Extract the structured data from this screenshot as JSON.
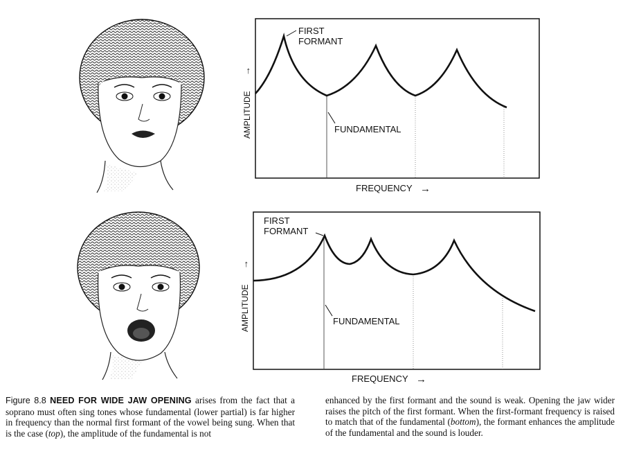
{
  "figure_number": "Figure 8.8",
  "caption_title": "NEED FOR WIDE JAW OPENING",
  "caption_left": "arises from the fact that a soprano must often sing tones whose fundamental (lower partial) is far higher in frequency than the normal first formant of the vowel being sung. When that is the case (",
  "caption_left_em": "top",
  "caption_left_end": "), the amplitude of the fundamental is not",
  "caption_right_a": "enhanced by the first formant and the sound is weak. Opening the jaw wider raises the pitch of the first formant. When the first-formant frequency is raised to match that of the fundamental (",
  "caption_right_em": "bottom",
  "caption_right_b": "), the formant enhances the amplitude of the fundamental and the sound is louder.",
  "charts": [
    {
      "first_formant_line1": "FIRST",
      "first_formant_line2": "FORMANT",
      "fundamental_label": "FUNDAMENTAL",
      "y_axis_label": "AMPLITUDE",
      "x_axis_label": "FREQUENCY",
      "arrow": "→"
    },
    {
      "first_formant_line1": "FIRST",
      "first_formant_line2": "FORMANT",
      "fundamental_label": "FUNDAMENTAL",
      "y_axis_label": "AMPLITUDE",
      "x_axis_label": "FREQUENCY",
      "arrow": "→"
    }
  ]
}
